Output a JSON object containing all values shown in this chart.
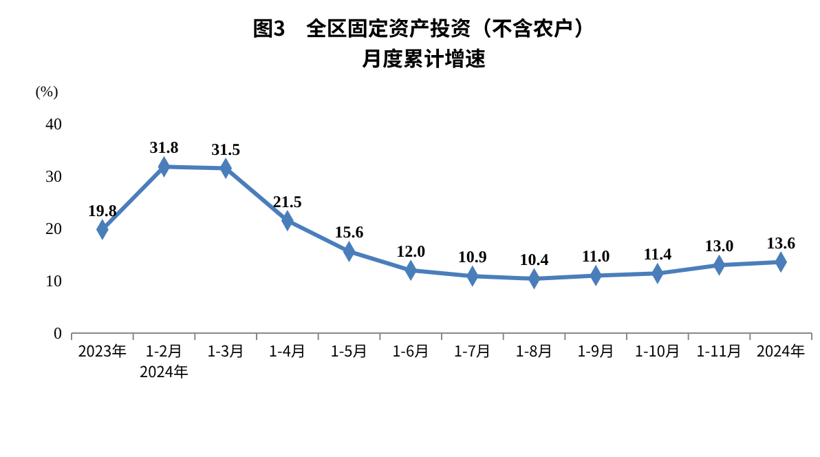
{
  "chart_data": {
    "type": "line",
    "title": "图3　全区固定资产投资（不含农户）",
    "subtitle": "月度累计增速",
    "ylabel": "(%)",
    "categories": [
      "2023年",
      "1-2月\n2024年",
      "1-3月",
      "1-4月",
      "1-5月",
      "1-6月",
      "1-7月",
      "1-8月",
      "1-9月",
      "1-10月",
      "1-11月",
      "2024年"
    ],
    "series": [
      {
        "color": "#4a7ebb",
        "values": [
          19.8,
          31.8,
          31.5,
          21.5,
          15.6,
          12.0,
          10.9,
          10.4,
          11.0,
          11.4,
          13.0,
          13.6
        ]
      }
    ],
    "value_labels": [
      "19.8",
      "31.8",
      "31.5",
      "21.5",
      "15.6",
      "12.0",
      "10.9",
      "10.4",
      "11.0",
      "11.4",
      "13.0",
      "13.6"
    ],
    "ylim": [
      0,
      40
    ],
    "yticks": [
      0,
      10,
      20,
      30,
      40
    ],
    "grid": false,
    "marker": "diamond",
    "line_style": "solid"
  }
}
